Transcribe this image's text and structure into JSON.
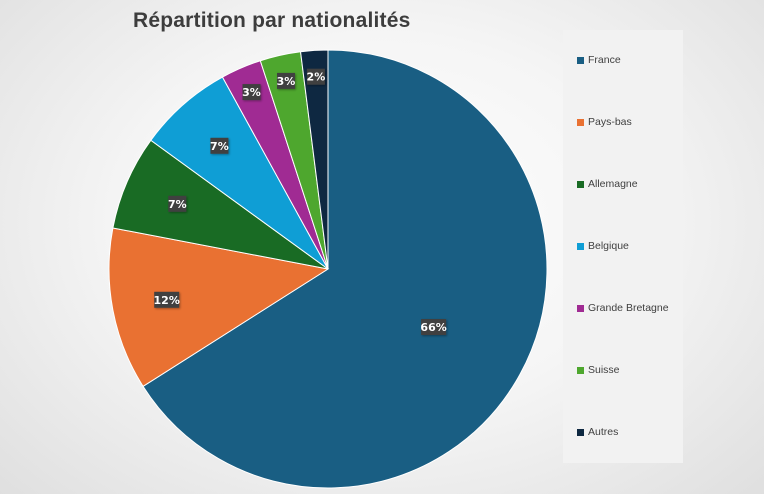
{
  "chart_data": {
    "type": "pie",
    "title": "Répartition par nationalités",
    "slices": [
      {
        "label": "France",
        "value": 66,
        "display": "66%",
        "color": "#195e83"
      },
      {
        "label": "Pays-bas",
        "value": 12,
        "display": "12%",
        "color": "#e97132"
      },
      {
        "label": "Allemagne",
        "value": 7,
        "display": "7%",
        "color": "#196b24"
      },
      {
        "label": "Belgique",
        "value": 7,
        "display": "7%",
        "color": "#0f9ed5"
      },
      {
        "label": "Grande Bretagne",
        "value": 3,
        "display": "3%",
        "color": "#a02b93"
      },
      {
        "label": "Suisse",
        "value": 3,
        "display": "3%",
        "color": "#4ea72e"
      },
      {
        "label": "Autres",
        "value": 2,
        "display": "2%",
        "color": "#0e2841"
      }
    ],
    "legend_position": "right",
    "label_background": "#404040"
  }
}
